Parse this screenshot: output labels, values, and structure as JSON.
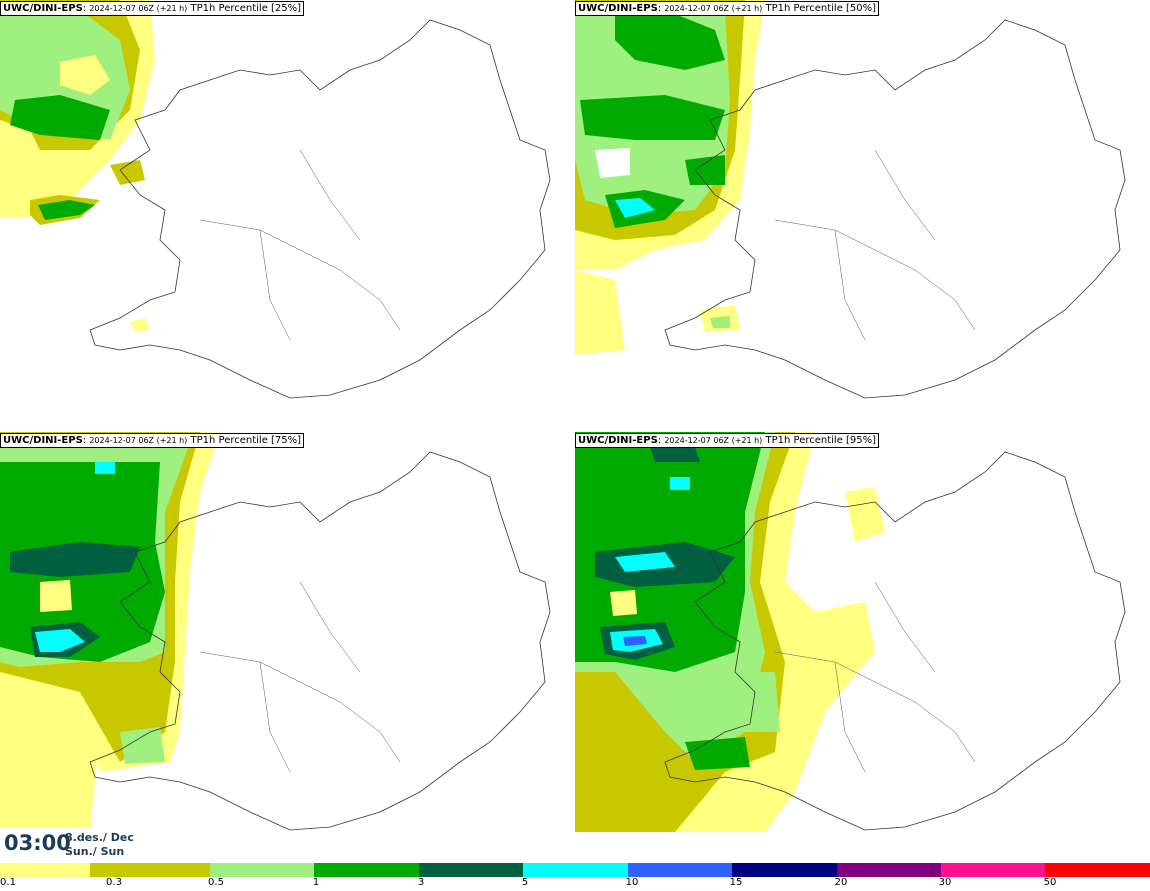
{
  "panels": [
    {
      "model": "UWC/DINI-EPS",
      "run": "2024-12-07 06Z (+21 h)",
      "variable": "TP1h Percentile [25%]"
    },
    {
      "model": "UWC/DINI-EPS",
      "run": "2024-12-07 06Z (+21 h)",
      "variable": "TP1h Percentile [50%]"
    },
    {
      "model": "UWC/DINI-EPS",
      "run": "2024-12-07 06Z (+21 h)",
      "variable": "TP1h Percentile [75%]"
    },
    {
      "model": "UWC/DINI-EPS",
      "run": "2024-12-07 06Z (+21 h)",
      "variable": "TP1h Percentile [95%]"
    }
  ],
  "valid_time": {
    "time": "03:00",
    "date_line1": "8.des./ Dec",
    "date_line2": "Sun./ Sun"
  },
  "colorbar": {
    "colors": [
      "#ffffff",
      "#ffff80",
      "#c8c800",
      "#a0f080",
      "#00aa00",
      "#006040",
      "#00ffff",
      "#3060ff",
      "#000080",
      "#800080",
      "#ff1090",
      "#ff0000"
    ],
    "labels": [
      "0.1",
      "0.3",
      "0.5",
      "1",
      "3",
      "5",
      "10",
      "15",
      "20",
      "30",
      "50"
    ]
  }
}
